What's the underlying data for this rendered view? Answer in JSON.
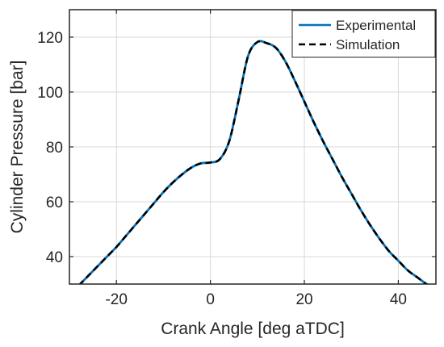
{
  "chart_data": {
    "type": "line",
    "title": "",
    "xlabel": "Crank Angle [deg aTDC]",
    "ylabel": "Cylinder Pressure [bar]",
    "xlim": [
      -30,
      48
    ],
    "ylim": [
      30,
      130
    ],
    "xticks": [
      -20,
      0,
      20,
      40
    ],
    "yticks": [
      40,
      60,
      80,
      100,
      120
    ],
    "grid": true,
    "legend_position": "top-right",
    "series": [
      {
        "name": "Experimental",
        "color": "#0072BD",
        "style": "solid",
        "x": [
          -28,
          -26,
          -24,
          -22,
          -20,
          -18,
          -16,
          -14,
          -12,
          -10,
          -8,
          -6,
          -4,
          -2,
          0,
          2,
          4,
          6,
          8,
          10,
          12,
          14,
          16,
          18,
          20,
          22,
          24,
          26,
          28,
          30,
          32,
          34,
          36,
          38,
          40,
          42,
          44,
          46,
          47
        ],
        "y": [
          29.5,
          33,
          36.5,
          40,
          43.5,
          47.5,
          51.5,
          55.5,
          59.5,
          63.5,
          67,
          70,
          72.5,
          74,
          74.3,
          75.5,
          82,
          97,
          113,
          118.2,
          117.8,
          116,
          111,
          104,
          96.5,
          89,
          82,
          75.5,
          69,
          63,
          57,
          51.5,
          46.5,
          42,
          38.5,
          35,
          32.5,
          30,
          29.5
        ]
      },
      {
        "name": "Simulation",
        "color": "#000000",
        "style": "dashed",
        "x": [
          -28,
          -26,
          -24,
          -22,
          -20,
          -18,
          -16,
          -14,
          -12,
          -10,
          -8,
          -6,
          -4,
          -2,
          0,
          2,
          4,
          6,
          8,
          10,
          12,
          14,
          16,
          18,
          20,
          22,
          24,
          26,
          28,
          30,
          32,
          34,
          36,
          38,
          40,
          42,
          44,
          46,
          47
        ],
        "y": [
          29.5,
          33,
          36.5,
          40,
          43.5,
          47.5,
          51.5,
          55.5,
          59.5,
          63.5,
          67,
          70,
          72.5,
          74,
          74.3,
          75.5,
          82,
          97,
          113,
          118.2,
          117.8,
          116,
          111,
          104,
          96.5,
          89,
          82,
          75.5,
          69,
          63,
          57,
          51.5,
          46.5,
          42,
          38.5,
          35,
          32.5,
          30,
          29.5
        ]
      }
    ]
  }
}
